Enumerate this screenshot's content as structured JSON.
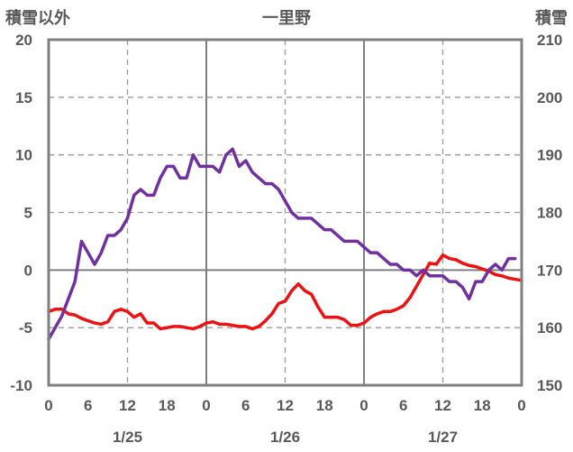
{
  "chart_data": {
    "type": "line",
    "title": "一里野",
    "left_axis_label": "積雪以外",
    "right_axis_label": "積雪",
    "left_ylim": [
      -10,
      20
    ],
    "right_ylim": [
      150,
      210
    ],
    "left_yticks": [
      "20",
      "15",
      "10",
      "5",
      "0",
      "-5",
      "-10"
    ],
    "right_yticks": [
      "210",
      "200",
      "190",
      "180",
      "170",
      "160",
      "150"
    ],
    "x_hour_ticks": [
      "0",
      "6",
      "12",
      "18",
      "0",
      "6",
      "12",
      "18",
      "0",
      "6",
      "12",
      "18",
      "0"
    ],
    "x_date_labels": [
      {
        "label": "1/25",
        "at_hour": 12
      },
      {
        "label": "1/26",
        "at_hour": 36
      },
      {
        "label": "1/27",
        "at_hour": 60
      }
    ],
    "x_range_hours": [
      0,
      72
    ],
    "grid": "dashed at 12h, solid at day boundaries, solid zero line",
    "series": [
      {
        "axis": "left",
        "color": "#ee1111",
        "values": [
          -3.6,
          -3.4,
          -3.4,
          -3.8,
          -3.9,
          -4.2,
          -4.4,
          -4.6,
          -4.7,
          -4.5,
          -3.6,
          -3.4,
          -3.6,
          -4.1,
          -3.8,
          -4.6,
          -4.6,
          -5.1,
          -5.0,
          -4.9,
          -4.9,
          -5.0,
          -5.1,
          -4.9,
          -4.6,
          -4.5,
          -4.7,
          -4.7,
          -4.8,
          -4.9,
          -4.9,
          -5.1,
          -4.9,
          -4.4,
          -3.8,
          -2.9,
          -2.7,
          -1.8,
          -1.2,
          -1.8,
          -2.1,
          -3.2,
          -4.1,
          -4.1,
          -4.1,
          -4.3,
          -4.8,
          -4.8,
          -4.6,
          -4.1,
          -3.8,
          -3.6,
          -3.6,
          -3.4,
          -3.1,
          -2.4,
          -1.4,
          -0.4,
          0.6,
          0.5,
          1.3,
          1.0,
          0.9,
          0.6,
          0.4,
          0.3,
          0.1,
          -0.1,
          -0.4,
          -0.5,
          -0.7,
          -0.8,
          -0.9
        ]
      },
      {
        "axis": "right",
        "color": "#7030a0",
        "values": [
          158,
          160,
          162,
          165,
          168,
          175,
          173,
          171,
          173,
          176,
          176,
          177,
          179,
          183,
          184,
          183,
          183,
          186,
          188,
          188,
          186,
          186,
          190,
          188,
          188,
          188,
          187,
          190,
          191,
          188,
          189,
          187,
          186,
          185,
          185,
          184,
          182,
          180,
          179,
          179,
          179,
          178,
          177,
          177,
          176,
          175,
          175,
          175,
          174,
          173,
          173,
          172,
          171,
          171,
          170,
          170,
          169,
          170,
          169,
          169,
          169,
          168,
          168,
          167,
          165,
          168,
          168,
          170,
          171,
          170,
          172,
          172
        ]
      }
    ]
  }
}
